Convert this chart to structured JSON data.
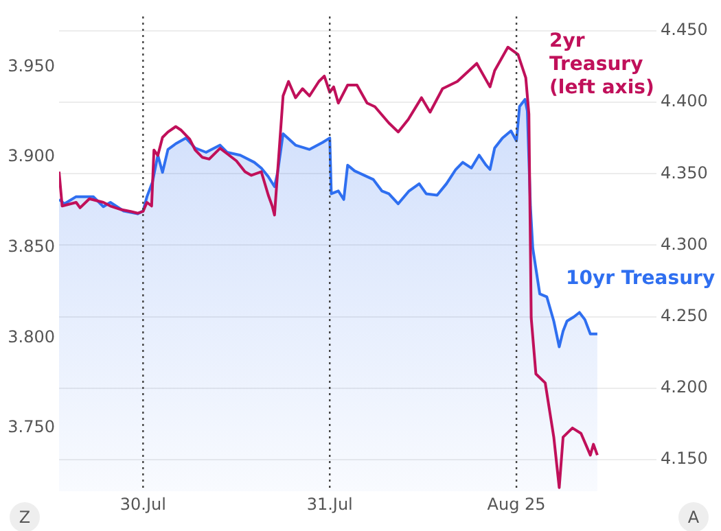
{
  "chart_data": {
    "type": "line",
    "legend": false,
    "grid": "y2",
    "line_style": "solid",
    "marker": "none",
    "xlim": [
      "2025-07-29T13:12",
      "2025-08-01T18:00"
    ],
    "xticks": [
      {
        "value": "2025-07-30",
        "label": "30.Jul"
      },
      {
        "value": "2025-07-31",
        "label": "31.Jul"
      },
      {
        "value": "2025-08-01",
        "label": "Aug 25"
      }
    ],
    "ylim": [
      3.715,
      3.978
    ],
    "yticks": [
      {
        "value": 3.75,
        "label": "3.750"
      },
      {
        "value": 3.8,
        "label": "3.800"
      },
      {
        "value": 3.85,
        "label": "3.850"
      },
      {
        "value": 3.9,
        "label": "3.900"
      },
      {
        "value": 3.95,
        "label": "3.950"
      }
    ],
    "y2lim": [
      4.128,
      4.46
    ],
    "y2ticks": [
      {
        "value": 4.15,
        "label": "4.150"
      },
      {
        "value": 4.2,
        "label": "4.200"
      },
      {
        "value": 4.25,
        "label": "4.250"
      },
      {
        "value": 4.3,
        "label": "4.300"
      },
      {
        "value": 4.35,
        "label": "4.350"
      },
      {
        "value": 4.4,
        "label": "4.400"
      },
      {
        "value": 4.45,
        "label": "4.450"
      }
    ],
    "ref_lines": [
      {
        "axis": "x",
        "value": "2025-07-30",
        "color": "#444444",
        "line_style": "dotted"
      },
      {
        "axis": "x",
        "value": "2025-07-31",
        "color": "#444444",
        "line_style": "dotted"
      },
      {
        "axis": "x",
        "value": "2025-08-01",
        "color": "#444444",
        "line_style": "dotted"
      }
    ],
    "annotations": [
      "Z",
      "A"
    ],
    "series": [
      {
        "name": "10yr Treasury",
        "type": "area",
        "axis": "y2",
        "color": "#2f6ff0",
        "x": [
          "2025-07-29T13:12",
          "2025-07-29T13:54",
          "2025-07-29T15:24",
          "2025-07-29T17:36",
          "2025-07-29T18:54",
          "2025-07-29T19:48",
          "2025-07-29T21:30",
          "2025-07-29T23:18",
          "2025-07-30T00:00",
          "2025-07-30T00:30",
          "2025-07-30T01:12",
          "2025-07-30T01:54",
          "2025-07-30T02:30",
          "2025-07-30T03:12",
          "2025-07-30T04:12",
          "2025-07-30T05:30",
          "2025-07-30T06:42",
          "2025-07-30T08:06",
          "2025-07-30T09:54",
          "2025-07-30T10:48",
          "2025-07-30T12:30",
          "2025-07-30T14:18",
          "2025-07-30T15:12",
          "2025-07-30T16:06",
          "2025-07-30T16:54",
          "2025-07-30T17:18",
          "2025-07-30T18:00",
          "2025-07-30T19:36",
          "2025-07-30T21:24",
          "2025-07-30T23:06",
          "2025-07-31T00:00",
          "2025-07-31T00:12",
          "2025-07-31T01:06",
          "2025-07-31T01:48",
          "2025-07-31T02:18",
          "2025-07-31T03:12",
          "2025-07-31T04:24",
          "2025-07-31T05:36",
          "2025-07-31T06:42",
          "2025-07-31T07:36",
          "2025-07-31T08:48",
          "2025-07-31T10:12",
          "2025-07-31T11:30",
          "2025-07-31T12:24",
          "2025-07-31T13:48",
          "2025-07-31T15:00",
          "2025-07-31T16:12",
          "2025-07-31T17:06",
          "2025-07-31T18:12",
          "2025-07-31T19:12",
          "2025-07-31T20:06",
          "2025-07-31T20:36",
          "2025-07-31T21:12",
          "2025-07-31T22:12",
          "2025-07-31T23:18",
          "2025-08-01T00:00",
          "2025-08-01T00:24",
          "2025-08-01T01:06",
          "2025-08-01T01:24",
          "2025-08-01T01:48",
          "2025-08-01T02:06",
          "2025-08-01T03:00",
          "2025-08-01T03:54",
          "2025-08-01T04:48",
          "2025-08-01T05:30",
          "2025-08-01T06:00",
          "2025-08-01T06:30",
          "2025-08-01T07:24",
          "2025-08-01T08:06",
          "2025-08-01T08:48",
          "2025-08-01T09:30",
          "2025-08-01T10:24"
        ],
        "values": [
          4.332,
          4.329,
          4.334,
          4.334,
          4.327,
          4.33,
          4.324,
          4.322,
          4.324,
          4.334,
          4.344,
          4.363,
          4.351,
          4.367,
          4.371,
          4.375,
          4.368,
          4.365,
          4.37,
          4.365,
          4.363,
          4.358,
          4.354,
          4.348,
          4.341,
          4.351,
          4.378,
          4.37,
          4.367,
          4.372,
          4.375,
          4.336,
          4.338,
          4.332,
          4.356,
          4.352,
          4.349,
          4.346,
          4.338,
          4.336,
          4.329,
          4.338,
          4.343,
          4.336,
          4.335,
          4.343,
          4.353,
          4.358,
          4.354,
          4.363,
          4.356,
          4.353,
          4.368,
          4.375,
          4.38,
          4.373,
          4.397,
          4.402,
          4.394,
          4.327,
          4.298,
          4.266,
          4.264,
          4.247,
          4.229,
          4.24,
          4.247,
          4.25,
          4.253,
          4.248,
          4.238,
          4.238
        ]
      },
      {
        "name": "2yr Treasury (left axis)",
        "axis": "y",
        "color": "#c0105a",
        "x": [
          "2025-07-29T13:12",
          "2025-07-29T13:36",
          "2025-07-29T15:24",
          "2025-07-29T15:54",
          "2025-07-29T17:06",
          "2025-07-29T18:54",
          "2025-07-29T19:48",
          "2025-07-29T21:12",
          "2025-07-29T22:24",
          "2025-07-29T23:18",
          "2025-07-30T00:00",
          "2025-07-30T00:30",
          "2025-07-30T01:06",
          "2025-07-30T01:24",
          "2025-07-30T01:54",
          "2025-07-30T02:30",
          "2025-07-30T03:12",
          "2025-07-30T04:12",
          "2025-07-30T04:54",
          "2025-07-30T06:00",
          "2025-07-30T06:42",
          "2025-07-30T07:36",
          "2025-07-30T08:30",
          "2025-07-30T09:54",
          "2025-07-30T10:48",
          "2025-07-30T12:00",
          "2025-07-30T13:06",
          "2025-07-30T13:54",
          "2025-07-30T15:12",
          "2025-07-30T16:06",
          "2025-07-30T16:36",
          "2025-07-30T16:54",
          "2025-07-30T17:18",
          "2025-07-30T18:00",
          "2025-07-30T18:42",
          "2025-07-30T19:36",
          "2025-07-30T20:30",
          "2025-07-30T21:24",
          "2025-07-30T22:36",
          "2025-07-30T23:18",
          "2025-07-31T00:00",
          "2025-07-31T00:30",
          "2025-07-31T01:06",
          "2025-07-31T02:18",
          "2025-07-31T03:30",
          "2025-07-31T04:48",
          "2025-07-31T05:48",
          "2025-07-31T07:36",
          "2025-07-31T08:48",
          "2025-07-31T10:06",
          "2025-07-31T11:48",
          "2025-07-31T12:54",
          "2025-07-31T14:30",
          "2025-07-31T16:24",
          "2025-07-31T18:54",
          "2025-07-31T20:36",
          "2025-07-31T21:12",
          "2025-07-31T22:54",
          "2025-08-01T00:12",
          "2025-08-01T01:12",
          "2025-08-01T01:36",
          "2025-08-01T01:54",
          "2025-08-01T02:30",
          "2025-08-01T03:42",
          "2025-08-01T04:48",
          "2025-08-01T05:30",
          "2025-08-01T06:00",
          "2025-08-01T07:12",
          "2025-08-01T08:18",
          "2025-08-01T09:30",
          "2025-08-01T09:54",
          "2025-08-01T10:24"
        ],
        "values": [
          3.892,
          3.873,
          3.875,
          3.872,
          3.877,
          3.875,
          3.873,
          3.871,
          3.87,
          3.869,
          3.87,
          3.875,
          3.873,
          3.904,
          3.901,
          3.911,
          3.914,
          3.917,
          3.915,
          3.91,
          3.904,
          3.9,
          3.899,
          3.905,
          3.902,
          3.898,
          3.892,
          3.89,
          3.892,
          3.879,
          3.873,
          3.868,
          3.892,
          3.934,
          3.942,
          3.933,
          3.938,
          3.934,
          3.942,
          3.945,
          3.936,
          3.939,
          3.93,
          3.94,
          3.94,
          3.93,
          3.928,
          3.919,
          3.914,
          3.921,
          3.933,
          3.925,
          3.938,
          3.942,
          3.952,
          3.939,
          3.948,
          3.961,
          3.957,
          3.944,
          3.924,
          3.811,
          3.78,
          3.775,
          3.745,
          3.717,
          3.745,
          3.75,
          3.747,
          3.735,
          3.741,
          3.735
        ]
      }
    ]
  }
}
